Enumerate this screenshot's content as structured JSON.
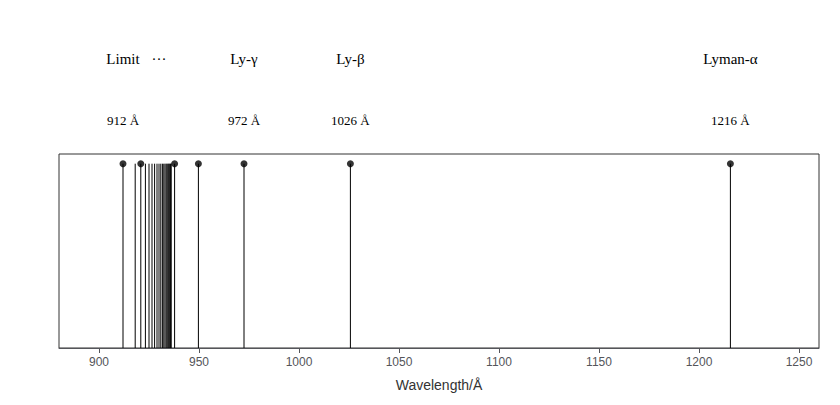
{
  "chart_data": {
    "type": "vlines",
    "xlabel": "Wavelength/Å",
    "xlim": [
      880,
      1260
    ],
    "xticks": [
      900,
      950,
      1000,
      1050,
      1100,
      1150,
      1200,
      1250
    ],
    "ylim": [
      0,
      1
    ],
    "tick_labels": "x",
    "grid": false,
    "series": [
      {
        "type": "vlines",
        "color": "black",
        "x": [
          912.0,
          918.1,
          920.9,
          923.2,
          925.0,
          926.5,
          927.8,
          929.0,
          930.0,
          930.9,
          931.7,
          932.4,
          933.0,
          933.6,
          934.1,
          934.6,
          935.0,
          935.4,
          935.8,
          936.1,
          937.8,
          949.7,
          972.5,
          1025.7,
          1215.7
        ],
        "values": [
          0.95,
          0.95,
          0.95,
          0.95,
          0.95,
          0.95,
          0.95,
          0.95,
          0.95,
          0.95,
          0.95,
          0.95,
          0.95,
          0.95,
          0.95,
          0.95,
          0.95,
          0.95,
          0.95,
          0.95,
          0.95,
          0.95,
          0.95,
          0.95,
          0.95
        ]
      },
      {
        "type": "scatter",
        "marker": "circle",
        "color": "black",
        "x": [
          912.0,
          920.9,
          937.8,
          949.7,
          972.5,
          1025.7,
          1215.7
        ],
        "values": [
          0.95,
          0.95,
          0.95,
          0.95,
          0.95,
          0.95,
          0.95
        ]
      }
    ],
    "annotations": [
      {
        "label": "Limit",
        "sublabel": "912 Å",
        "x": 912.0
      },
      {
        "label": "···",
        "x": 930.0
      },
      {
        "label": "Ly-γ",
        "sublabel": "972 Å",
        "x": 972.5
      },
      {
        "label": "Ly-β",
        "sublabel": "1026 Å",
        "x": 1025.7
      },
      {
        "label": "Lyman-α",
        "sublabel": "1216 Å",
        "x": 1215.7
      }
    ]
  }
}
